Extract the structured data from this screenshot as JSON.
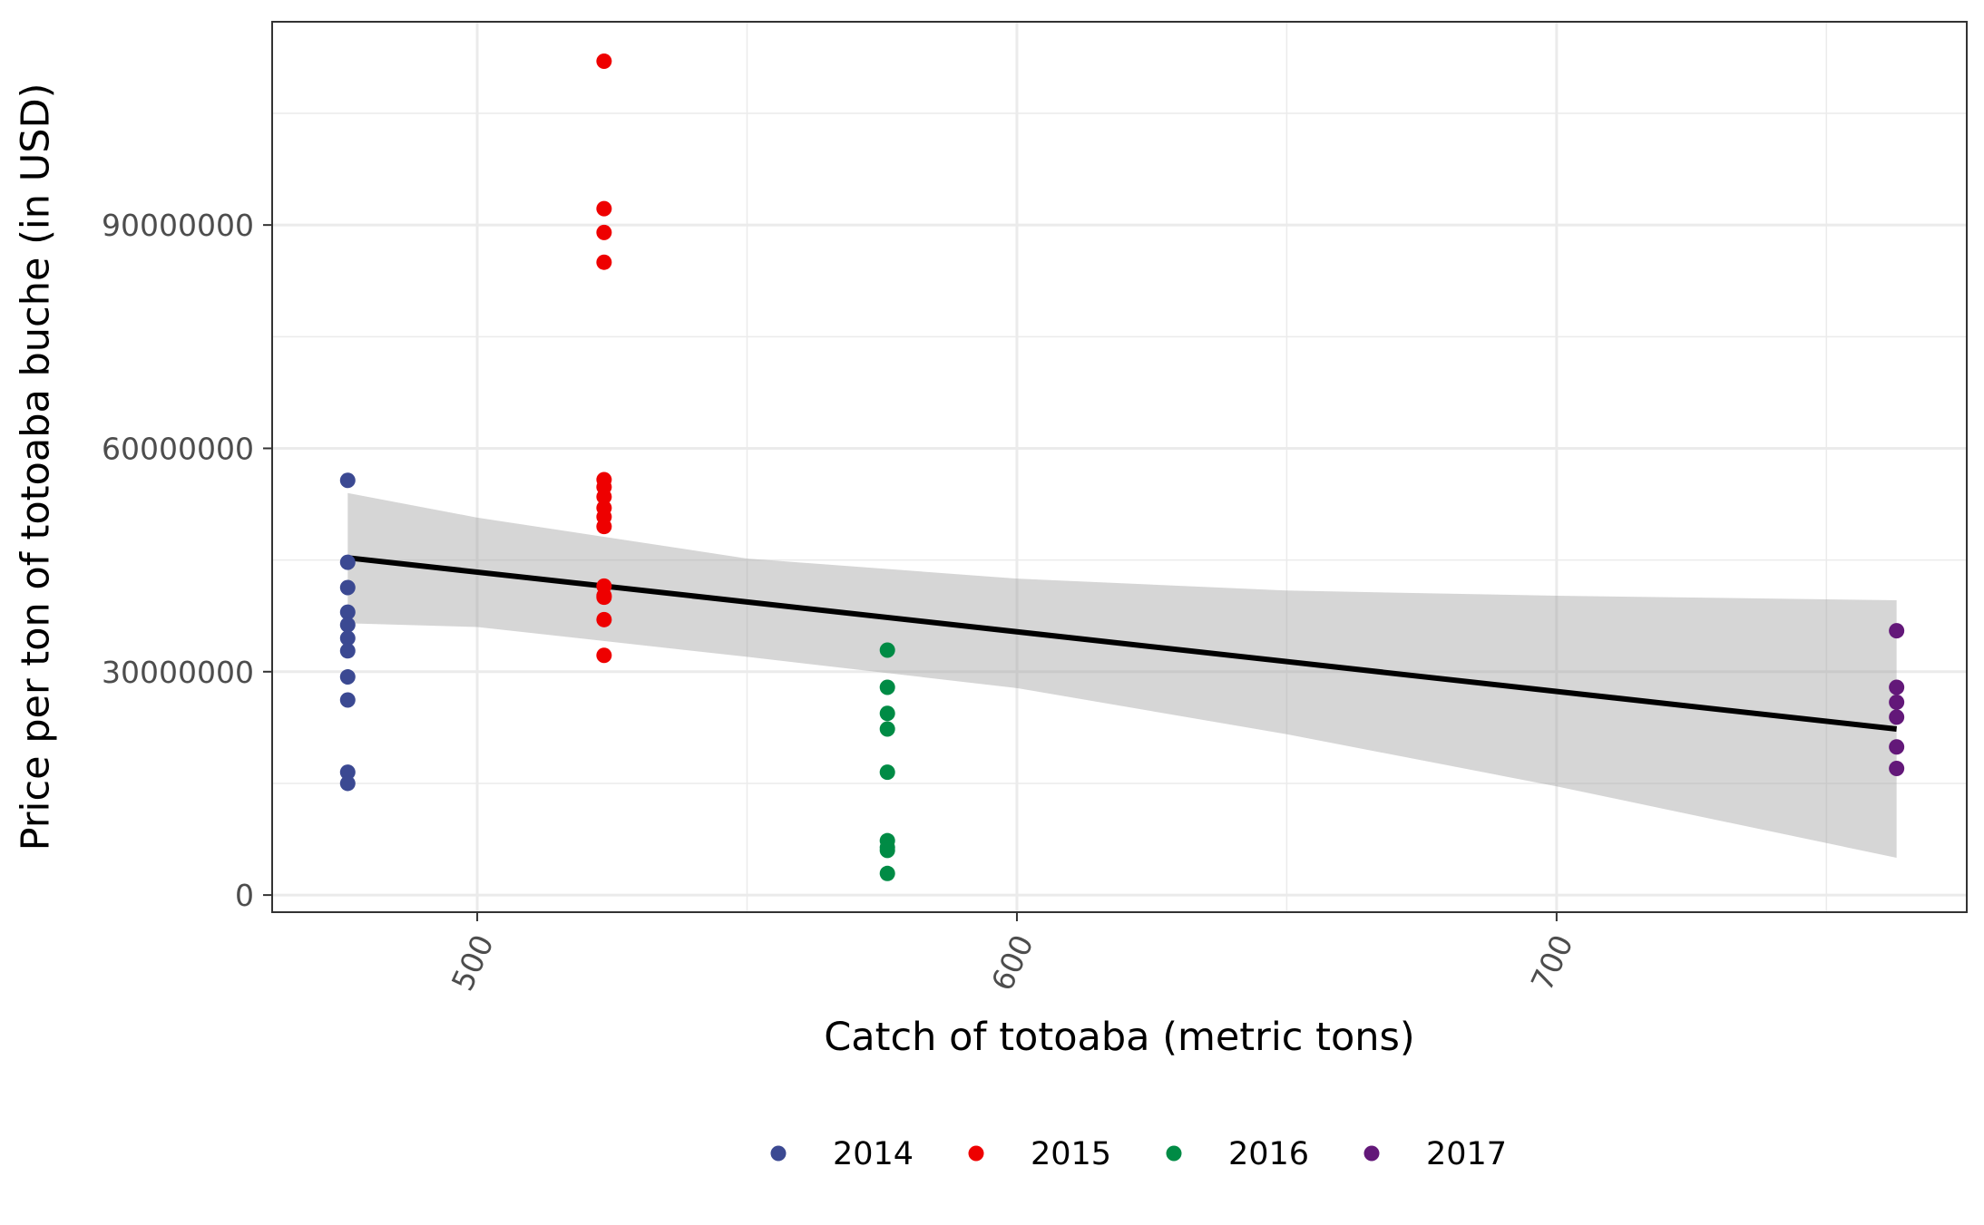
{
  "chart_data": {
    "type": "scatter",
    "title": "",
    "xlabel": "Catch of totoaba (metric tons)",
    "ylabel": "Price per ton of totoaba buche (in USD)",
    "xlim": [
      462,
      776
    ],
    "ylim": [
      -2300000,
      117300000
    ],
    "x_ticks": [
      500,
      600,
      700
    ],
    "x_tick_labels": [
      "500",
      "600",
      "700"
    ],
    "x_minor_ticks": [
      550,
      650,
      750
    ],
    "y_ticks": [
      0,
      30000000,
      60000000,
      90000000
    ],
    "y_tick_labels": [
      "0",
      "30000000",
      "60000000",
      "90000000"
    ],
    "y_minor_ticks": [
      15000000,
      45000000,
      75000000,
      105000000
    ],
    "grid": true,
    "legend_position": "bottom",
    "series": [
      {
        "name": "2014",
        "color": "#3B4992",
        "x": [
          476,
          476,
          476,
          476,
          476,
          476,
          476,
          476,
          476,
          476,
          476
        ],
        "y": [
          55700000,
          44700000,
          41300000,
          38000000,
          36300000,
          34500000,
          32800000,
          29300000,
          26200000,
          16500000,
          15000000
        ]
      },
      {
        "name": "2015",
        "color": "#EE0000",
        "x": [
          523.5,
          523.5,
          523.5,
          523.5,
          523.5,
          523.5,
          523.5,
          523.5,
          523.5,
          523.5,
          523.5,
          523.5,
          523.5,
          523.5,
          523.5
        ],
        "y": [
          112000000,
          92200000,
          89000000,
          85000000,
          55800000,
          54800000,
          53500000,
          52000000,
          50800000,
          49500000,
          41500000,
          40200000,
          37000000,
          32200000,
          40000000
        ]
      },
      {
        "name": "2016",
        "color": "#008B45",
        "x": [
          576,
          576,
          576,
          576,
          576,
          576,
          576,
          576,
          576
        ],
        "y": [
          32900000,
          27900000,
          24400000,
          22300000,
          16500000,
          7300000,
          6400000,
          6000000,
          2900000
        ]
      },
      {
        "name": "2017",
        "color": "#631879",
        "x": [
          763,
          763,
          763,
          763,
          763,
          763
        ],
        "y": [
          35500000,
          27900000,
          25900000,
          23900000,
          19900000,
          17000000
        ]
      }
    ],
    "fit": {
      "type": "linear",
      "color": "#000000",
      "x": [
        476,
        763
      ],
      "y": [
        45300000,
        22300000
      ],
      "band_color": "#999999",
      "band_x": [
        476,
        500,
        550,
        600,
        650,
        700,
        763
      ],
      "band_lower": [
        36500000,
        36000000,
        32000000,
        27800000,
        21600000,
        14600000,
        5000000
      ],
      "band_upper": [
        54000000,
        50700000,
        45200000,
        42500000,
        40900000,
        40200000,
        39600000
      ]
    }
  }
}
